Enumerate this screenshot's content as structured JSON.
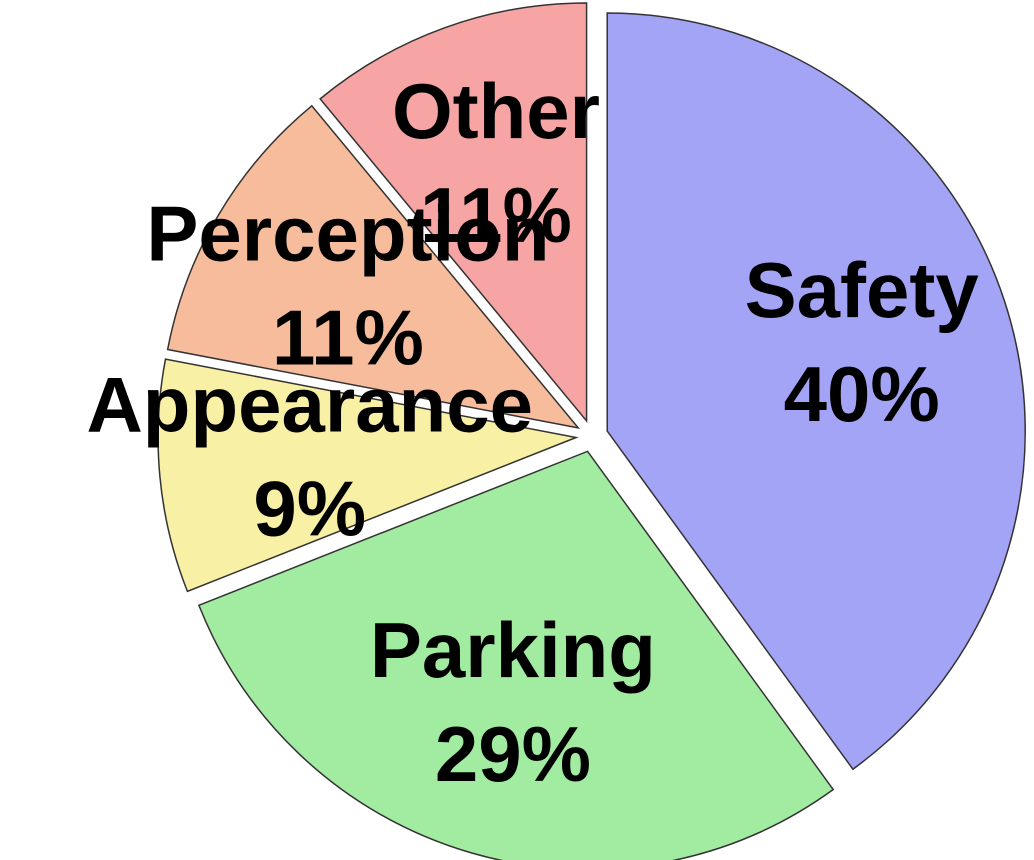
{
  "chart_data": {
    "type": "pie",
    "categories": [
      "Safety",
      "Parking",
      "Appearance",
      "Perception",
      "Other"
    ],
    "values": [
      40,
      29,
      9,
      11,
      11
    ],
    "value_labels": [
      "40%",
      "29%",
      "9%",
      "11%",
      "11%"
    ],
    "colors": [
      "#a4a4f6",
      "#a2eca2",
      "#f8f0a4",
      "#f6bc9c",
      "#f6a4a4"
    ]
  }
}
